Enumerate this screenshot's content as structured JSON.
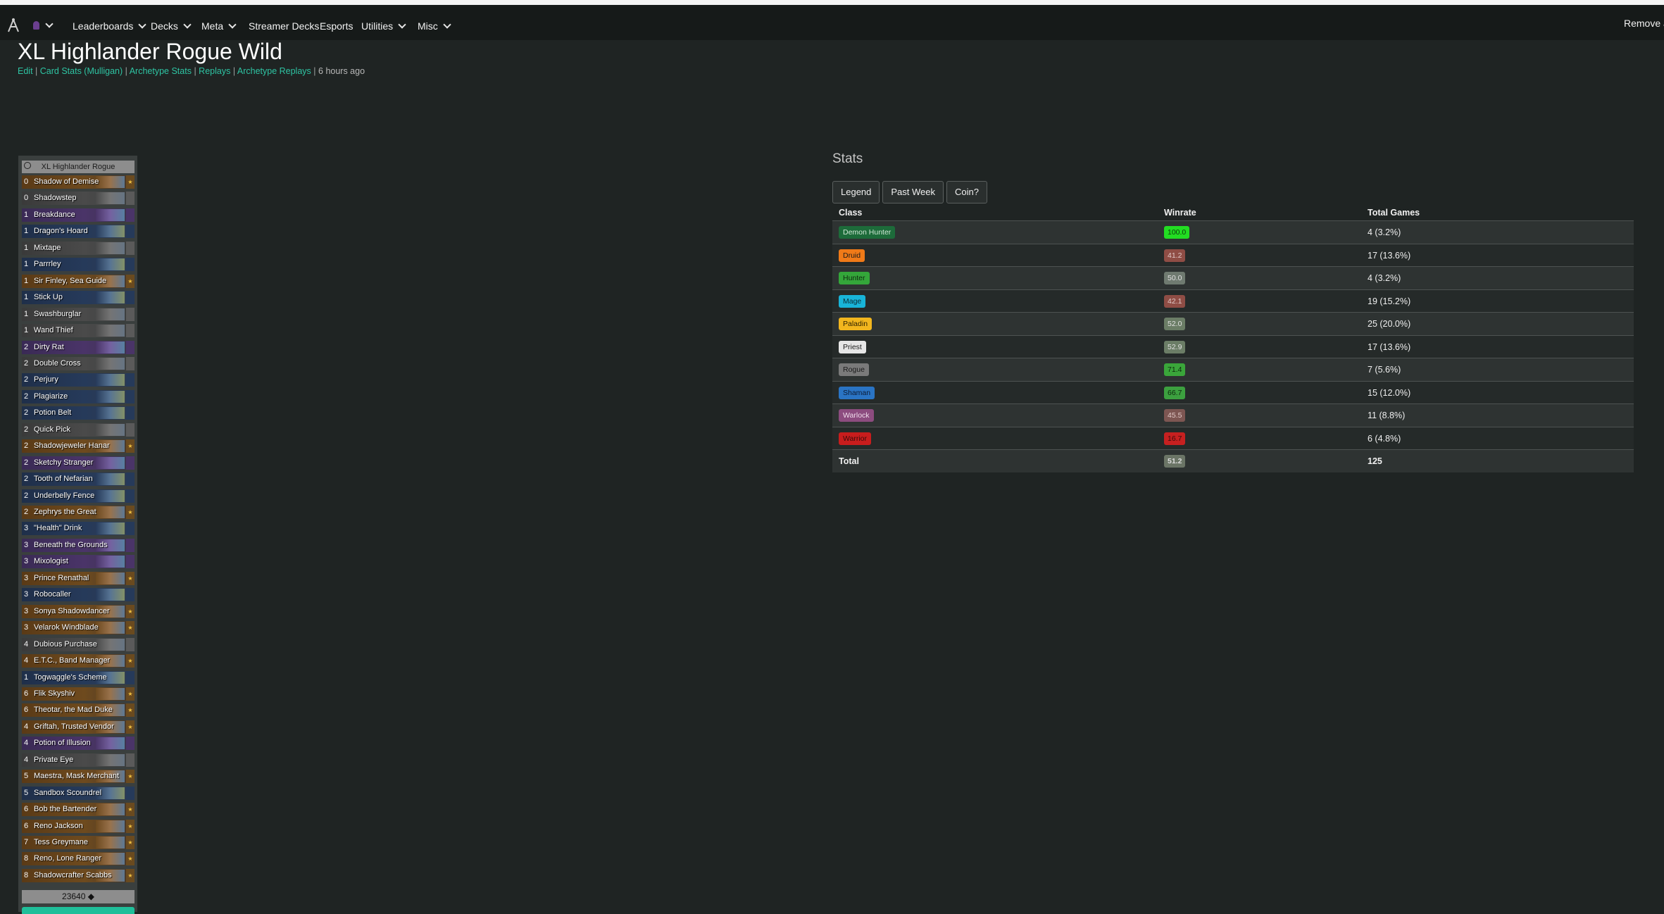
{
  "nav": {
    "items": [
      "Leaderboards",
      "Decks",
      "Meta",
      "Streamer Decks",
      "Esports",
      "Utilities",
      "Misc"
    ],
    "remove_ads": "Remove ads"
  },
  "deck": {
    "title": "XL Highlander Rogue Wild",
    "links": [
      "Edit",
      "Card Stats (Mulligan)",
      "Archetype Stats",
      "Replays",
      "Archetype Replays"
    ],
    "updated": "6 hours ago",
    "list_title": "XL Highlander Rogue",
    "dust": "23640",
    "cards": [
      {
        "cost": "0",
        "name": "Shadow of Demise",
        "rarity": "legendary"
      },
      {
        "cost": "0",
        "name": "Shadowstep",
        "rarity": "common"
      },
      {
        "cost": "1",
        "name": "Breakdance",
        "rarity": "epic"
      },
      {
        "cost": "1",
        "name": "Dragon's Hoard",
        "rarity": "rare"
      },
      {
        "cost": "1",
        "name": "Mixtape",
        "rarity": "common"
      },
      {
        "cost": "1",
        "name": "Parrrley",
        "rarity": "rare"
      },
      {
        "cost": "1",
        "name": "Sir Finley, Sea Guide",
        "rarity": "legendary"
      },
      {
        "cost": "1",
        "name": "Stick Up",
        "rarity": "rare"
      },
      {
        "cost": "1",
        "name": "Swashburglar",
        "rarity": "common"
      },
      {
        "cost": "1",
        "name": "Wand Thief",
        "rarity": "common"
      },
      {
        "cost": "2",
        "name": "Dirty Rat",
        "rarity": "epic"
      },
      {
        "cost": "2",
        "name": "Double Cross",
        "rarity": "common"
      },
      {
        "cost": "2",
        "name": "Perjury",
        "rarity": "rare"
      },
      {
        "cost": "2",
        "name": "Plagiarize",
        "rarity": "rare"
      },
      {
        "cost": "2",
        "name": "Potion Belt",
        "rarity": "rare"
      },
      {
        "cost": "2",
        "name": "Quick Pick",
        "rarity": "common"
      },
      {
        "cost": "2",
        "name": "Shadowjeweler Hanar",
        "rarity": "legendary"
      },
      {
        "cost": "2",
        "name": "Sketchy Stranger",
        "rarity": "epic"
      },
      {
        "cost": "2",
        "name": "Tooth of Nefarian",
        "rarity": "rare"
      },
      {
        "cost": "2",
        "name": "Underbelly Fence",
        "rarity": "rare"
      },
      {
        "cost": "2",
        "name": "Zephrys the Great",
        "rarity": "legendary"
      },
      {
        "cost": "3",
        "name": "\"Health\" Drink",
        "rarity": "rare"
      },
      {
        "cost": "3",
        "name": "Beneath the Grounds",
        "rarity": "epic"
      },
      {
        "cost": "3",
        "name": "Mixologist",
        "rarity": "epic"
      },
      {
        "cost": "3",
        "name": "Prince Renathal",
        "rarity": "legendary"
      },
      {
        "cost": "3",
        "name": "Robocaller",
        "rarity": "rare"
      },
      {
        "cost": "3",
        "name": "Sonya Shadowdancer",
        "rarity": "legendary"
      },
      {
        "cost": "3",
        "name": "Velarok Windblade",
        "rarity": "legendary"
      },
      {
        "cost": "4",
        "name": "Dubious Purchase",
        "rarity": "common"
      },
      {
        "cost": "4",
        "name": "E.T.C., Band Manager",
        "rarity": "legendary"
      },
      {
        "cost": "1",
        "name": "Togwaggle's Scheme",
        "rarity": "rare"
      },
      {
        "cost": "6",
        "name": "Flik Skyshiv",
        "rarity": "legendary"
      },
      {
        "cost": "6",
        "name": "Theotar, the Mad Duke",
        "rarity": "legendary"
      },
      {
        "cost": "4",
        "name": "Griftah, Trusted Vendor",
        "rarity": "legendary"
      },
      {
        "cost": "4",
        "name": "Potion of Illusion",
        "rarity": "epic"
      },
      {
        "cost": "4",
        "name": "Private Eye",
        "rarity": "common"
      },
      {
        "cost": "5",
        "name": "Maestra, Mask Merchant",
        "rarity": "legendary"
      },
      {
        "cost": "5",
        "name": "Sandbox Scoundrel",
        "rarity": "rare"
      },
      {
        "cost": "6",
        "name": "Bob the Bartender",
        "rarity": "legendary"
      },
      {
        "cost": "6",
        "name": "Reno Jackson",
        "rarity": "legendary"
      },
      {
        "cost": "7",
        "name": "Tess Greymane",
        "rarity": "legendary"
      },
      {
        "cost": "8",
        "name": "Reno, Lone Ranger",
        "rarity": "legendary"
      },
      {
        "cost": "8",
        "name": "Shadowcrafter Scabbs",
        "rarity": "legendary"
      }
    ]
  },
  "stats": {
    "title": "Stats",
    "tabs": [
      "Legend",
      "Past Week",
      "Coin?"
    ],
    "headers": {
      "class": "Class",
      "winrate": "Winrate",
      "games": "Total Games"
    },
    "rows": [
      {
        "class": "Demon Hunter",
        "class_color": "#1d6b3a",
        "class_text": "#cfe8d5",
        "winrate": "100.0",
        "wr_color": "#22dd22",
        "wr_text": "#0a3a0a",
        "games": "4 (3.2%)"
      },
      {
        "class": "Druid",
        "class_color": "#f07a18",
        "class_text": "#1a1a1a",
        "winrate": "41.2",
        "wr_color": "#8f4d45",
        "wr_text": "#e0c8c6",
        "games": "17 (13.6%)"
      },
      {
        "class": "Hunter",
        "class_color": "#34a63a",
        "class_text": "#0e2a0f",
        "winrate": "50.0",
        "wr_color": "#6f7a70",
        "wr_text": "#e0e0e0",
        "games": "4 (3.2%)"
      },
      {
        "class": "Mage",
        "class_color": "#18b4d8",
        "class_text": "#0b2a33",
        "winrate": "42.1",
        "wr_color": "#8f4d45",
        "wr_text": "#e0c8c6",
        "games": "19 (15.2%)"
      },
      {
        "class": "Paladin",
        "class_color": "#f2b61e",
        "class_text": "#2a1f00",
        "winrate": "52.0",
        "wr_color": "#6b7d66",
        "wr_text": "#e0e0e0",
        "games": "25 (20.0%)"
      },
      {
        "class": "Priest",
        "class_color": "#e6e6e6",
        "class_text": "#1a1a1a",
        "winrate": "52.9",
        "wr_color": "#6b7d66",
        "wr_text": "#e0e0e0",
        "games": "17 (13.6%)"
      },
      {
        "class": "Rogue",
        "class_color": "#7a7a7a",
        "class_text": "#1a1a1a",
        "winrate": "71.4",
        "wr_color": "#3aa63a",
        "wr_text": "#0c2a0c",
        "games": "7 (5.6%)"
      },
      {
        "class": "Shaman",
        "class_color": "#2a74c4",
        "class_text": "#0b1a33",
        "winrate": "66.7",
        "wr_color": "#3ca03f",
        "wr_text": "#0c2a0c",
        "games": "15 (12.0%)"
      },
      {
        "class": "Warlock",
        "class_color": "#8c4c7f",
        "class_text": "#f0dcec",
        "winrate": "45.5",
        "wr_color": "#7d5652",
        "wr_text": "#e0c8c6",
        "games": "11 (8.8%)"
      },
      {
        "class": "Warrior",
        "class_color": "#c81d1d",
        "class_text": "#3a0a0a",
        "winrate": "16.7",
        "wr_color": "#c62020",
        "wr_text": "#3a0a0a",
        "games": "6 (4.8%)"
      }
    ],
    "total": {
      "label": "Total",
      "winrate": "51.2",
      "wr_color": "#6b7566",
      "games": "125"
    }
  }
}
